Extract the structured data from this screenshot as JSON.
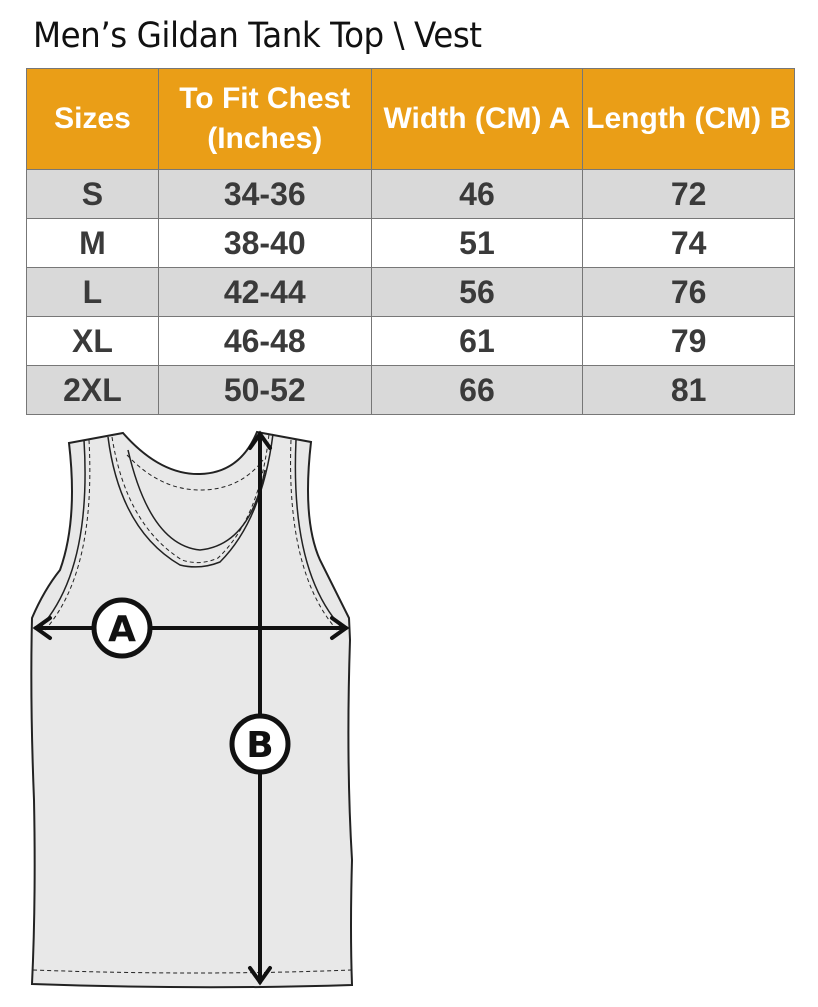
{
  "title": "Men’s Gildan Tank Top \\ Vest",
  "colors": {
    "header": "#EA9E17",
    "row_alt": "#D9D9D9",
    "text": "#3A3A3A"
  },
  "table": {
    "headers": [
      "Sizes",
      "To Fit Chest (Inches)",
      "Width (CM) A",
      "Length  (CM) B"
    ],
    "rows": [
      [
        "S",
        "34-36",
        "46",
        "72"
      ],
      [
        "M",
        "38-40",
        "51",
        "74"
      ],
      [
        "L",
        "42-44",
        "56",
        "76"
      ],
      [
        "XL",
        "46-48",
        "61",
        "79"
      ],
      [
        "2XL",
        "50-52",
        "66",
        "81"
      ]
    ]
  },
  "diagram": {
    "label_a": "A",
    "label_b": "B"
  }
}
